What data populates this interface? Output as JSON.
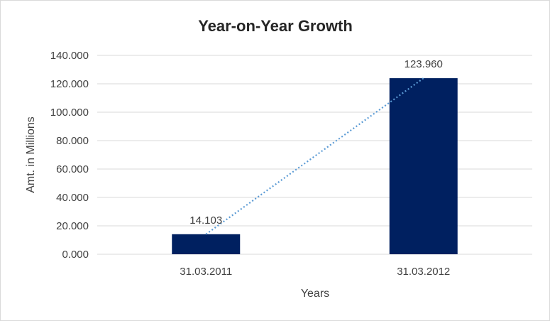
{
  "chart_data": {
    "type": "bar",
    "title": "Year-on-Year Growth",
    "xlabel": "Years",
    "ylabel": "Amt. in Millions",
    "categories": [
      "31.03.2011",
      "31.03.2012"
    ],
    "values": [
      14.103,
      123.96
    ],
    "value_labels": [
      "14.103",
      "123.960"
    ],
    "ylim": [
      0,
      140
    ],
    "yticks": [
      0,
      20,
      40,
      60,
      80,
      100,
      120,
      140
    ],
    "ytick_labels": [
      "0.000",
      "20.000",
      "40.000",
      "60.000",
      "80.000",
      "100.000",
      "120.000",
      "140.000"
    ],
    "grid": true,
    "trendline": "linear, dotted",
    "colors": {
      "bar": "#002060",
      "trendline": "#5b9bd5",
      "grid": "#d9d9d9"
    }
  }
}
